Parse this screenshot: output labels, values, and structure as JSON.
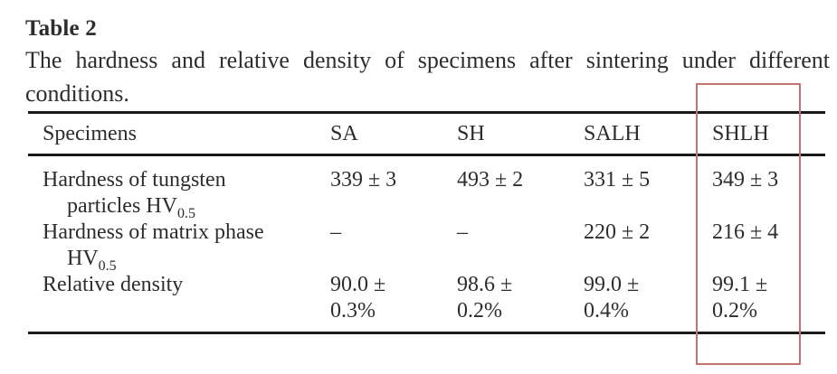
{
  "title": "Table 2",
  "caption": {
    "line1": "The hardness and relative density of specimens after sintering under different",
    "line2": "conditions."
  },
  "table": {
    "headers": [
      "Specimens",
      "SA",
      "SH",
      "SALH",
      "SHLH"
    ],
    "rows": [
      {
        "label_line1": "Hardness of tungsten",
        "label_line2": "particles HV",
        "label_line2_sub": "0.5",
        "values": [
          {
            "line1": "339 ± 3",
            "line2": ""
          },
          {
            "line1": "493 ± 2",
            "line2": ""
          },
          {
            "line1": "331 ± 5",
            "line2": ""
          },
          {
            "line1": "349 ± 3",
            "line2": ""
          }
        ]
      },
      {
        "label_line1": "Hardness of matrix phase",
        "label_line2": "HV",
        "label_line2_sub": "0.5",
        "values": [
          {
            "line1": "–",
            "line2": ""
          },
          {
            "line1": "–",
            "line2": ""
          },
          {
            "line1": "220 ± 2",
            "line2": ""
          },
          {
            "line1": "216 ± 4",
            "line2": ""
          }
        ]
      },
      {
        "label_line1": "Relative density",
        "label_line2": "",
        "label_line2_sub": "",
        "values": [
          {
            "line1": "90.0 ±",
            "line2": "0.3%"
          },
          {
            "line1": "98.6 ±",
            "line2": "0.2%"
          },
          {
            "line1": "99.0 ±",
            "line2": "0.4%"
          },
          {
            "line1": "99.1 ±",
            "line2": "0.2%"
          }
        ]
      }
    ]
  },
  "highlight": {
    "highlighted_column": "SHLH",
    "color": "#c3736e"
  },
  "colors": {
    "text": "#2d2d2d",
    "rule": "#1a1a1a",
    "background": "#ffffff"
  },
  "chart_data": {
    "type": "table",
    "title": "Table 2 — The hardness and relative density of specimens after sintering under different conditions.",
    "columns": [
      "Specimens",
      "SA",
      "SH",
      "SALH",
      "SHLH"
    ],
    "rows": [
      [
        "Hardness of tungsten particles HV0.5",
        "339 ± 3",
        "493 ± 2",
        "331 ± 5",
        "349 ± 3"
      ],
      [
        "Hardness of matrix phase HV0.5",
        "–",
        "–",
        "220 ± 2",
        "216 ± 4"
      ],
      [
        "Relative density",
        "90.0 ± 0.3%",
        "98.6 ± 0.2%",
        "99.0 ± 0.4%",
        "99.1 ± 0.2%"
      ]
    ],
    "annotations": [
      "Red rectangle highlights the SHLH column"
    ]
  }
}
